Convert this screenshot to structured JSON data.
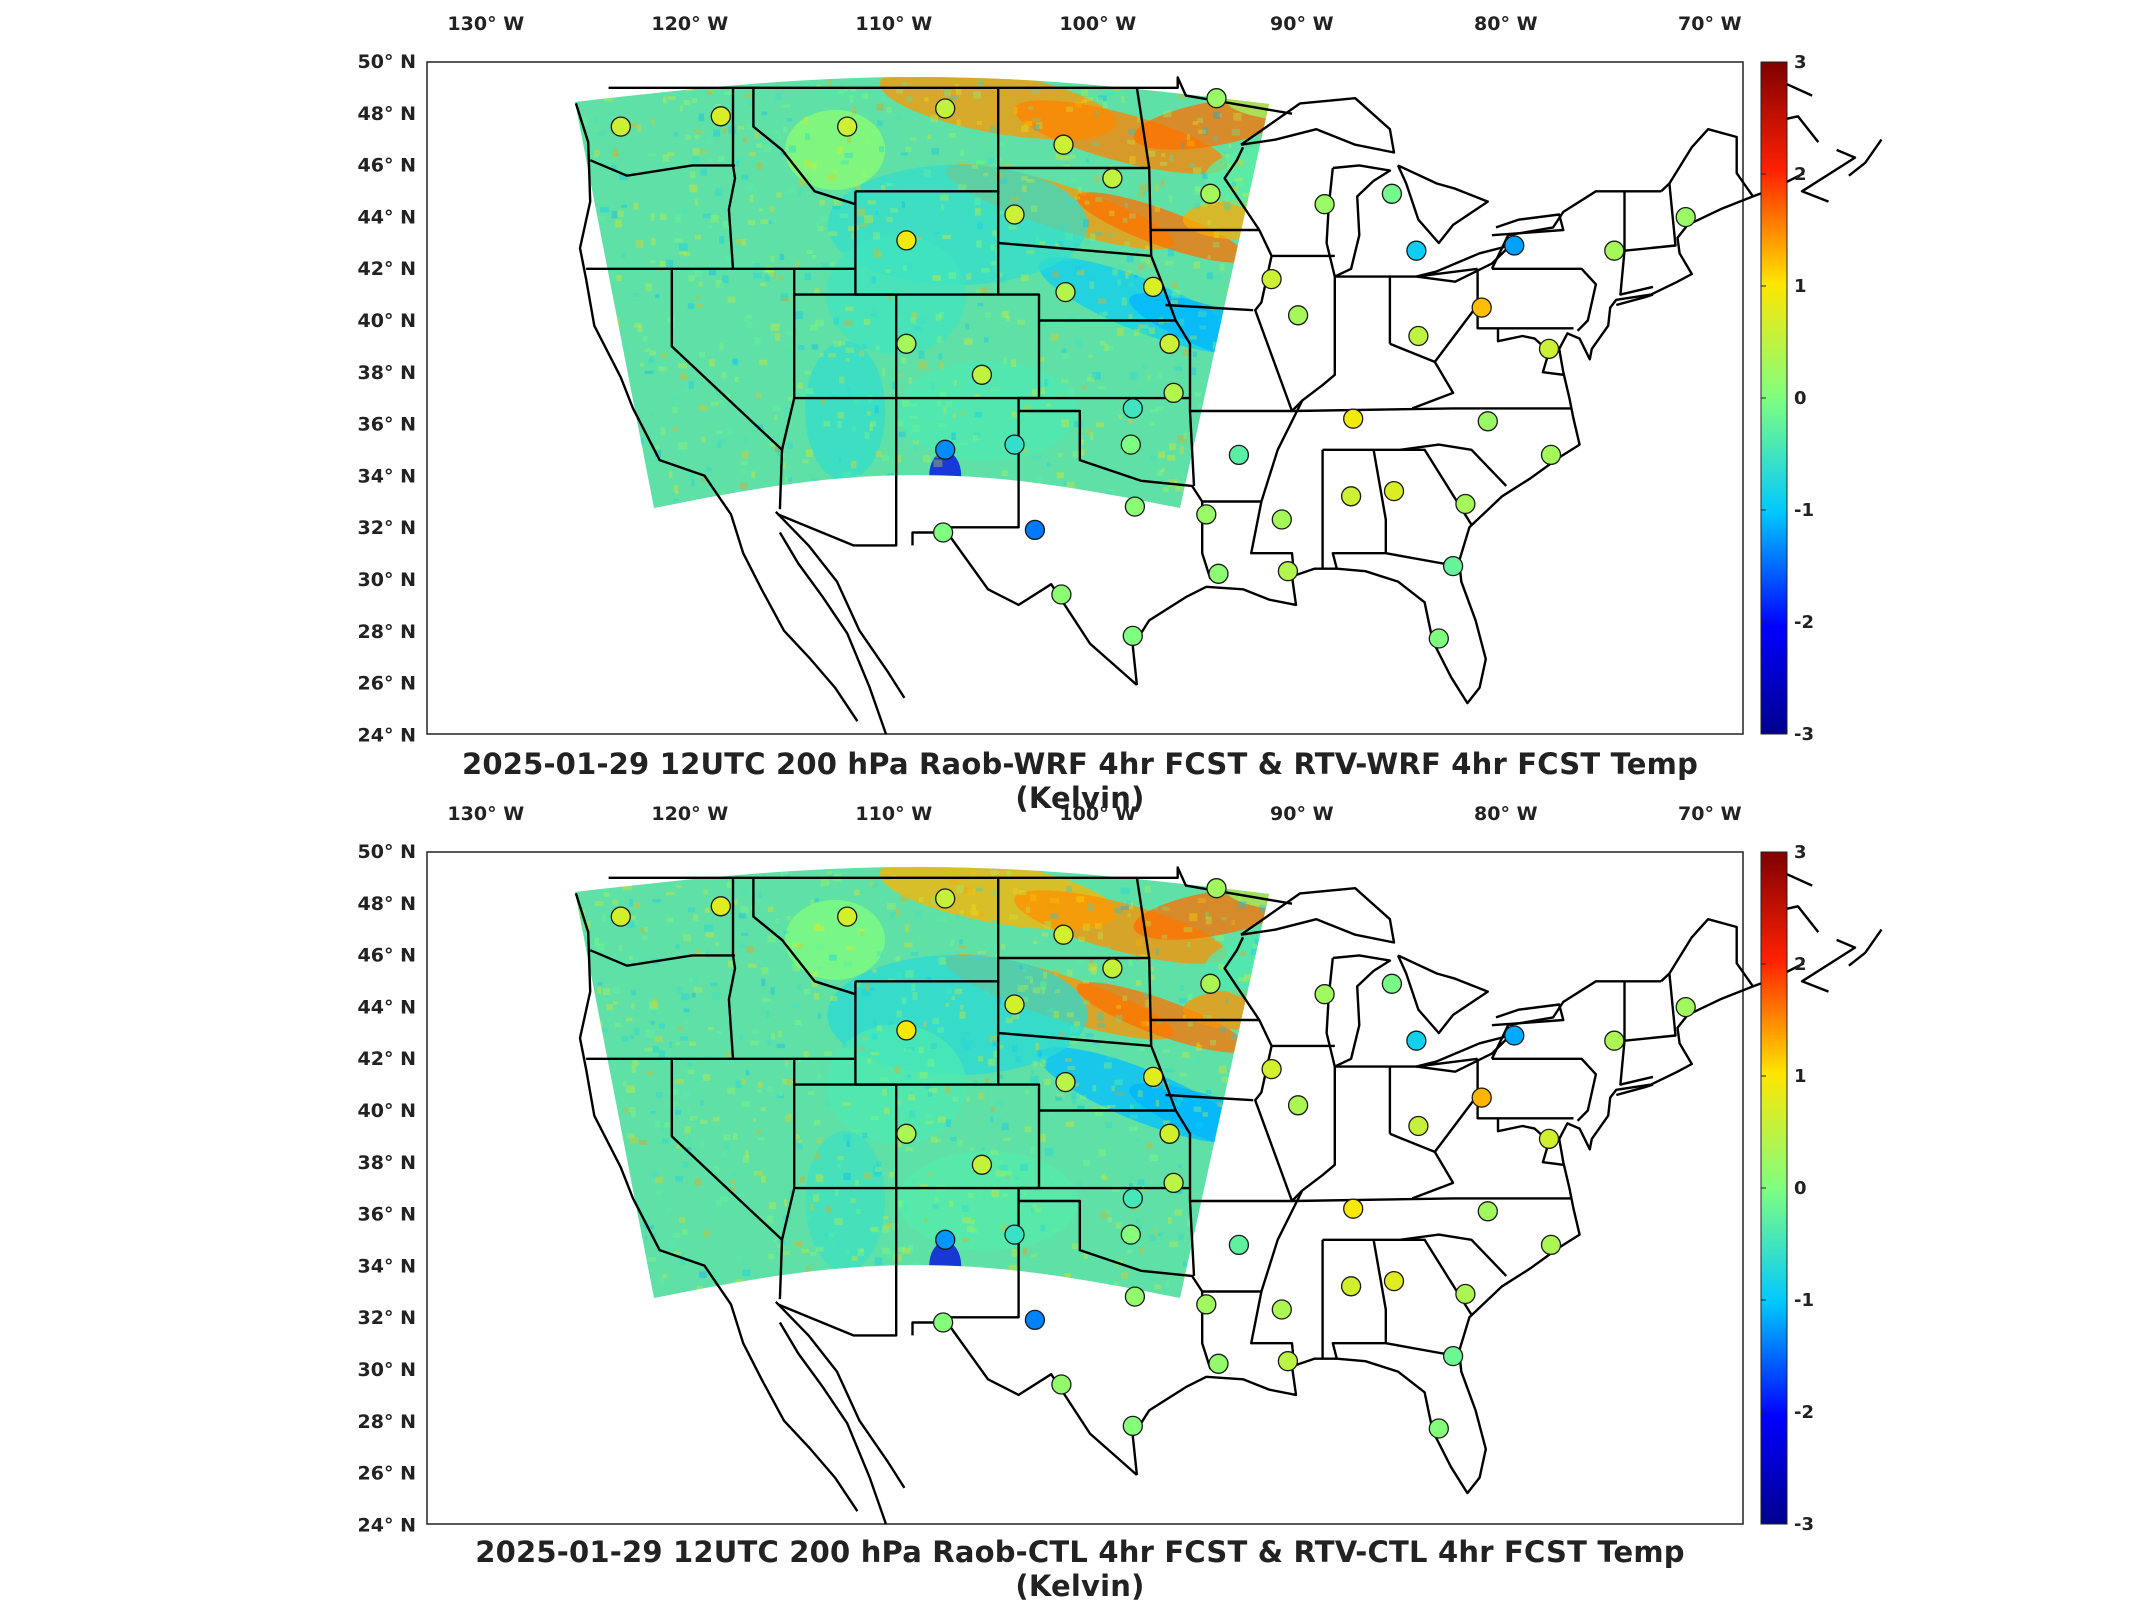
{
  "longitude_labels": [
    "130° W",
    "120° W",
    "110° W",
    "100° W",
    "90° W",
    "80° W",
    "70° W"
  ],
  "latitude_labels": [
    "50° N",
    "48° N",
    "46° N",
    "44° N",
    "42° N",
    "40° N",
    "38° N",
    "36° N",
    "34° N",
    "32° N",
    "30° N",
    "28° N",
    "26° N",
    "24° N"
  ],
  "colorbar_ticks": [
    "3",
    "2",
    "1",
    "0",
    "-1",
    "-2",
    "-3"
  ],
  "colorbar_range": [
    -3,
    3
  ],
  "colormap": [
    "#00008f",
    "#0000ff",
    "#00c8ff",
    "#7fff7f",
    "#ffe600",
    "#ff2000",
    "#800000"
  ],
  "field_base_color": "#5fe0a6",
  "map_extent": {
    "lon": [
      -130,
      -65
    ],
    "lat": [
      24,
      50
    ]
  },
  "panels": [
    {
      "title": "2025-01-29 12UTC 200 hPa Raob-WRF 4hr FCST & RTV-WRF 4hr FCST Temp (Kelvin)"
    },
    {
      "title": "2025-01-29 12UTC 200 hPa Raob-CTL 4hr FCST & RTV-CTL 4hr FCST Temp (Kelvin)"
    }
  ],
  "raob_stations": [
    {
      "lon": -122.5,
      "lat": 47.5,
      "value": 0.6
    },
    {
      "lon": -117.6,
      "lat": 47.9,
      "value": 0.7
    },
    {
      "lon": -111.4,
      "lat": 47.5,
      "value": 0.6
    },
    {
      "lon": -106.6,
      "lat": 48.2,
      "value": 0.5
    },
    {
      "lon": -100.8,
      "lat": 46.8,
      "value": 0.6
    },
    {
      "lon": -98.4,
      "lat": 45.5,
      "value": 0.5
    },
    {
      "lon": -93.6,
      "lat": 44.9,
      "value": 0.3
    },
    {
      "lon": -93.3,
      "lat": 48.6,
      "value": 0.2
    },
    {
      "lon": -108.5,
      "lat": 43.1,
      "value": 0.9
    },
    {
      "lon": -103.2,
      "lat": 44.1,
      "value": 0.6
    },
    {
      "lon": -100.7,
      "lat": 41.1,
      "value": 0.4
    },
    {
      "lon": -96.4,
      "lat": 41.3,
      "value": 0.7
    },
    {
      "lon": -90.6,
      "lat": 41.6,
      "value": 0.6
    },
    {
      "lon": -88.0,
      "lat": 44.5,
      "value": 0.2
    },
    {
      "lon": -84.7,
      "lat": 44.9,
      "value": -0.1
    },
    {
      "lon": -83.5,
      "lat": 42.7,
      "value": -0.9
    },
    {
      "lon": -78.7,
      "lat": 42.9,
      "value": -1.2
    },
    {
      "lon": -73.8,
      "lat": 42.7,
      "value": 0.3
    },
    {
      "lon": -70.3,
      "lat": 44.0,
      "value": 0.2
    },
    {
      "lon": -108.5,
      "lat": 39.1,
      "value": 0.3
    },
    {
      "lon": -104.8,
      "lat": 37.9,
      "value": 0.5
    },
    {
      "lon": -97.4,
      "lat": 36.6,
      "value": -0.5
    },
    {
      "lon": -95.6,
      "lat": 39.1,
      "value": 0.6
    },
    {
      "lon": -95.4,
      "lat": 37.2,
      "value": 0.4
    },
    {
      "lon": -89.3,
      "lat": 40.2,
      "value": 0.3
    },
    {
      "lon": -86.6,
      "lat": 36.2,
      "value": 0.9
    },
    {
      "lon": -83.4,
      "lat": 39.4,
      "value": 0.5
    },
    {
      "lon": -80.3,
      "lat": 40.5,
      "value": 1.2
    },
    {
      "lon": -77.0,
      "lat": 38.9,
      "value": 0.6
    },
    {
      "lon": -80.0,
      "lat": 36.1,
      "value": 0.2
    },
    {
      "lon": -76.9,
      "lat": 34.8,
      "value": 0.3
    },
    {
      "lon": -106.6,
      "lat": 35.0,
      "value": -1.3
    },
    {
      "lon": -103.2,
      "lat": 35.2,
      "value": -0.6
    },
    {
      "lon": -97.5,
      "lat": 35.2,
      "value": 0.0
    },
    {
      "lon": -92.2,
      "lat": 34.8,
      "value": -0.3
    },
    {
      "lon": -106.7,
      "lat": 31.8,
      "value": 0.0
    },
    {
      "lon": -102.2,
      "lat": 31.9,
      "value": -1.4
    },
    {
      "lon": -97.3,
      "lat": 32.8,
      "value": 0.1
    },
    {
      "lon": -93.8,
      "lat": 32.5,
      "value": 0.2
    },
    {
      "lon": -90.1,
      "lat": 32.3,
      "value": 0.3
    },
    {
      "lon": -86.7,
      "lat": 33.2,
      "value": 0.6
    },
    {
      "lon": -84.6,
      "lat": 33.4,
      "value": 0.7
    },
    {
      "lon": -81.1,
      "lat": 32.9,
      "value": 0.3
    },
    {
      "lon": -81.7,
      "lat": 30.5,
      "value": -0.2
    },
    {
      "lon": -93.2,
      "lat": 30.2,
      "value": 0.1
    },
    {
      "lon": -89.8,
      "lat": 30.3,
      "value": 0.4
    },
    {
      "lon": -100.9,
      "lat": 29.4,
      "value": 0.1
    },
    {
      "lon": -97.4,
      "lat": 27.8,
      "value": 0.0
    },
    {
      "lon": -82.4,
      "lat": 27.7,
      "value": 0.0
    }
  ]
}
